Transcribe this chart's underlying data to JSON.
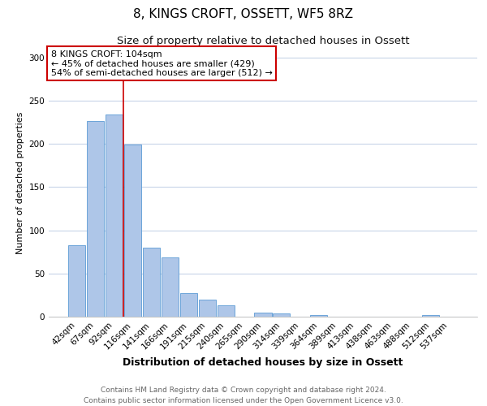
{
  "title": "8, KINGS CROFT, OSSETT, WF5 8RZ",
  "subtitle": "Size of property relative to detached houses in Ossett",
  "xlabel": "Distribution of detached houses by size in Ossett",
  "ylabel": "Number of detached properties",
  "bar_labels": [
    "42sqm",
    "67sqm",
    "92sqm",
    "116sqm",
    "141sqm",
    "166sqm",
    "191sqm",
    "215sqm",
    "240sqm",
    "265sqm",
    "290sqm",
    "314sqm",
    "339sqm",
    "364sqm",
    "389sqm",
    "413sqm",
    "438sqm",
    "463sqm",
    "488sqm",
    "512sqm",
    "537sqm"
  ],
  "bar_values": [
    83,
    226,
    234,
    199,
    80,
    69,
    27,
    20,
    13,
    0,
    5,
    4,
    0,
    2,
    0,
    0,
    0,
    0,
    0,
    2,
    0
  ],
  "bar_color": "#aec6e8",
  "bar_edgecolor": "#5b9bd5",
  "background_color": "#ffffff",
  "grid_color": "#c8d4e8",
  "ylim": [
    0,
    310
  ],
  "yticks": [
    0,
    50,
    100,
    150,
    200,
    250,
    300
  ],
  "vline_color": "#cc0000",
  "annotation_title": "8 KINGS CROFT: 104sqm",
  "annotation_line1": "← 45% of detached houses are smaller (429)",
  "annotation_line2": "54% of semi-detached houses are larger (512) →",
  "annotation_box_edgecolor": "#cc0000",
  "footer_line1": "Contains HM Land Registry data © Crown copyright and database right 2024.",
  "footer_line2": "Contains public sector information licensed under the Open Government Licence v3.0.",
  "title_fontsize": 11,
  "subtitle_fontsize": 9.5,
  "xlabel_fontsize": 9,
  "ylabel_fontsize": 8,
  "tick_fontsize": 7.5,
  "annotation_fontsize": 8,
  "footer_fontsize": 6.5
}
